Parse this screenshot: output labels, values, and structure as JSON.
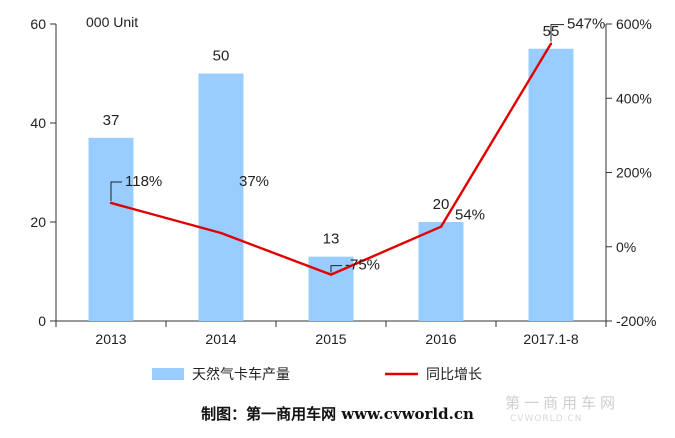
{
  "chart_data": {
    "type": "bar",
    "unit_label": "000 Unit",
    "categories": [
      "2013",
      "2014",
      "2015",
      "2016",
      "2017.1-8"
    ],
    "series": [
      {
        "name": "天然气卡车产量",
        "kind": "bar",
        "axis": "left",
        "values": [
          37,
          50,
          13,
          20,
          55
        ],
        "labels": [
          "37",
          "50",
          "13",
          "20",
          "55"
        ],
        "color": "#99CCFF"
      },
      {
        "name": "同比增长",
        "kind": "line",
        "axis": "right",
        "values": [
          118,
          37,
          -75,
          54,
          547
        ],
        "labels": [
          "118%",
          "37%",
          "-75%",
          "54%",
          "547%"
        ],
        "color": "#E00000"
      }
    ],
    "y_left": {
      "min": 0,
      "max": 60,
      "ticks": [
        "0",
        "20",
        "40",
        "60"
      ]
    },
    "y_right": {
      "min": -200,
      "max": 600,
      "ticks": [
        "-200%",
        "0%",
        "200%",
        "400%",
        "600%"
      ]
    },
    "grid": false,
    "legend_position": "bottom"
  },
  "caption": "制图：第一商用车网 www.cvworld.cn",
  "watermark": "第一商用车网",
  "watermark_sub": "CVWORLD.CN"
}
